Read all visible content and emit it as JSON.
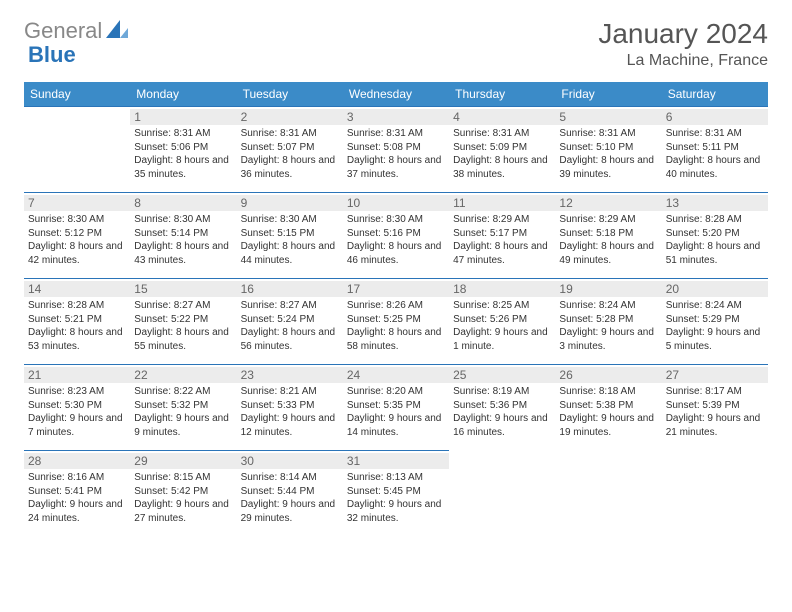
{
  "logo": {
    "text1": "General",
    "text2": "Blue"
  },
  "title": "January 2024",
  "location": "La Machine, France",
  "colors": {
    "header_bg": "#3b8bc8",
    "header_text": "#ffffff",
    "border": "#2a74b8",
    "daynum_bg": "#ececec",
    "daynum_text": "#666666",
    "body_text": "#333333",
    "title_text": "#555555"
  },
  "weekdays": [
    "Sunday",
    "Monday",
    "Tuesday",
    "Wednesday",
    "Thursday",
    "Friday",
    "Saturday"
  ],
  "weeks": [
    [
      null,
      {
        "n": "1",
        "sunrise": "8:31 AM",
        "sunset": "5:06 PM",
        "daylight": "8 hours and 35 minutes."
      },
      {
        "n": "2",
        "sunrise": "8:31 AM",
        "sunset": "5:07 PM",
        "daylight": "8 hours and 36 minutes."
      },
      {
        "n": "3",
        "sunrise": "8:31 AM",
        "sunset": "5:08 PM",
        "daylight": "8 hours and 37 minutes."
      },
      {
        "n": "4",
        "sunrise": "8:31 AM",
        "sunset": "5:09 PM",
        "daylight": "8 hours and 38 minutes."
      },
      {
        "n": "5",
        "sunrise": "8:31 AM",
        "sunset": "5:10 PM",
        "daylight": "8 hours and 39 minutes."
      },
      {
        "n": "6",
        "sunrise": "8:31 AM",
        "sunset": "5:11 PM",
        "daylight": "8 hours and 40 minutes."
      }
    ],
    [
      {
        "n": "7",
        "sunrise": "8:30 AM",
        "sunset": "5:12 PM",
        "daylight": "8 hours and 42 minutes."
      },
      {
        "n": "8",
        "sunrise": "8:30 AM",
        "sunset": "5:14 PM",
        "daylight": "8 hours and 43 minutes."
      },
      {
        "n": "9",
        "sunrise": "8:30 AM",
        "sunset": "5:15 PM",
        "daylight": "8 hours and 44 minutes."
      },
      {
        "n": "10",
        "sunrise": "8:30 AM",
        "sunset": "5:16 PM",
        "daylight": "8 hours and 46 minutes."
      },
      {
        "n": "11",
        "sunrise": "8:29 AM",
        "sunset": "5:17 PM",
        "daylight": "8 hours and 47 minutes."
      },
      {
        "n": "12",
        "sunrise": "8:29 AM",
        "sunset": "5:18 PM",
        "daylight": "8 hours and 49 minutes."
      },
      {
        "n": "13",
        "sunrise": "8:28 AM",
        "sunset": "5:20 PM",
        "daylight": "8 hours and 51 minutes."
      }
    ],
    [
      {
        "n": "14",
        "sunrise": "8:28 AM",
        "sunset": "5:21 PM",
        "daylight": "8 hours and 53 minutes."
      },
      {
        "n": "15",
        "sunrise": "8:27 AM",
        "sunset": "5:22 PM",
        "daylight": "8 hours and 55 minutes."
      },
      {
        "n": "16",
        "sunrise": "8:27 AM",
        "sunset": "5:24 PM",
        "daylight": "8 hours and 56 minutes."
      },
      {
        "n": "17",
        "sunrise": "8:26 AM",
        "sunset": "5:25 PM",
        "daylight": "8 hours and 58 minutes."
      },
      {
        "n": "18",
        "sunrise": "8:25 AM",
        "sunset": "5:26 PM",
        "daylight": "9 hours and 1 minute."
      },
      {
        "n": "19",
        "sunrise": "8:24 AM",
        "sunset": "5:28 PM",
        "daylight": "9 hours and 3 minutes."
      },
      {
        "n": "20",
        "sunrise": "8:24 AM",
        "sunset": "5:29 PM",
        "daylight": "9 hours and 5 minutes."
      }
    ],
    [
      {
        "n": "21",
        "sunrise": "8:23 AM",
        "sunset": "5:30 PM",
        "daylight": "9 hours and 7 minutes."
      },
      {
        "n": "22",
        "sunrise": "8:22 AM",
        "sunset": "5:32 PM",
        "daylight": "9 hours and 9 minutes."
      },
      {
        "n": "23",
        "sunrise": "8:21 AM",
        "sunset": "5:33 PM",
        "daylight": "9 hours and 12 minutes."
      },
      {
        "n": "24",
        "sunrise": "8:20 AM",
        "sunset": "5:35 PM",
        "daylight": "9 hours and 14 minutes."
      },
      {
        "n": "25",
        "sunrise": "8:19 AM",
        "sunset": "5:36 PM",
        "daylight": "9 hours and 16 minutes."
      },
      {
        "n": "26",
        "sunrise": "8:18 AM",
        "sunset": "5:38 PM",
        "daylight": "9 hours and 19 minutes."
      },
      {
        "n": "27",
        "sunrise": "8:17 AM",
        "sunset": "5:39 PM",
        "daylight": "9 hours and 21 minutes."
      }
    ],
    [
      {
        "n": "28",
        "sunrise": "8:16 AM",
        "sunset": "5:41 PM",
        "daylight": "9 hours and 24 minutes."
      },
      {
        "n": "29",
        "sunrise": "8:15 AM",
        "sunset": "5:42 PM",
        "daylight": "9 hours and 27 minutes."
      },
      {
        "n": "30",
        "sunrise": "8:14 AM",
        "sunset": "5:44 PM",
        "daylight": "9 hours and 29 minutes."
      },
      {
        "n": "31",
        "sunrise": "8:13 AM",
        "sunset": "5:45 PM",
        "daylight": "9 hours and 32 minutes."
      },
      null,
      null,
      null
    ]
  ],
  "labels": {
    "sunrise": "Sunrise: ",
    "sunset": "Sunset: ",
    "daylight": "Daylight: "
  }
}
